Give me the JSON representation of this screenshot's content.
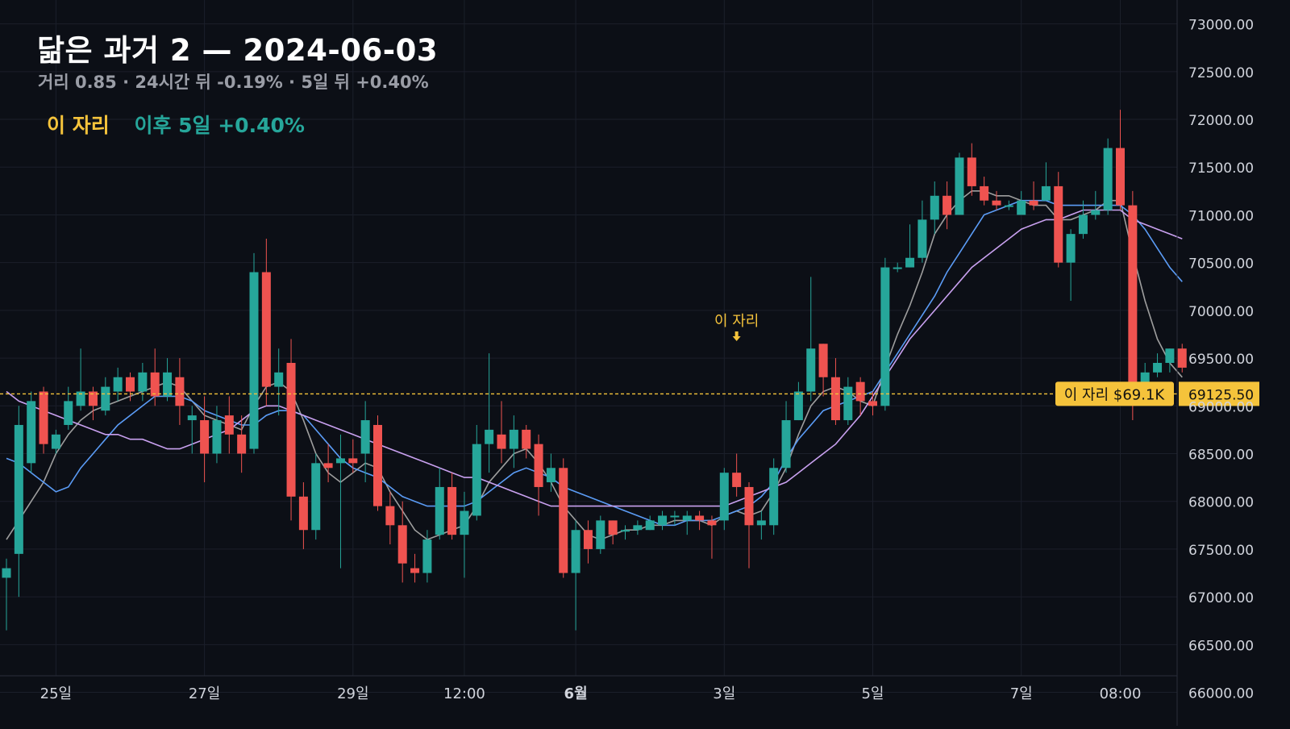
{
  "title": "닮은 과거 2 — 2024-06-03",
  "subtitle": "거리 0.85 · 24시간 뒤 -0.19% · 5일 뒤 +0.40%",
  "legend": {
    "here_label": "이 자리",
    "after_label": "이후 5일 +0.40%"
  },
  "marker": {
    "label": "이 자리",
    "price_tag": "이 자리 $69.1K",
    "price_value": "69125.50"
  },
  "colors": {
    "background": "#0c0f16",
    "grid": "#1b1f2a",
    "up": "#26a69a",
    "down": "#ef5350",
    "ma_fast": "#9e9e9e",
    "ma_mid": "#5b9cf6",
    "ma_slow": "#c9a1f0",
    "marker": "#f5c33b"
  },
  "chart_data": {
    "type": "candlestick",
    "title": "닮은 과거 2 — 2024-06-03",
    "ylim": [
      65650,
      73250
    ],
    "y_ticks": [
      "73000.00",
      "72500.00",
      "72000.00",
      "71500.00",
      "71000.00",
      "70500.00",
      "70000.00",
      "69500.00",
      "69000.00",
      "68500.00",
      "68000.00",
      "67500.00",
      "67000.00",
      "66500.00",
      "66000.00"
    ],
    "x_labels": [
      "25일",
      "27일",
      "29일",
      "12:00",
      "6월",
      "3일",
      "5일",
      "7일",
      "08:00"
    ],
    "x_label_index": [
      4,
      16,
      28,
      37,
      46,
      58,
      70,
      82,
      90
    ],
    "bold_x_label": "6월",
    "marker_index": 59,
    "marker_price": 69125.5,
    "candles": [
      [
        67200,
        67300,
        66650,
        67400
      ],
      [
        67450,
        68800,
        67000,
        69000
      ],
      [
        68400,
        69050,
        68300,
        69150
      ],
      [
        69150,
        68600,
        68500,
        69200
      ],
      [
        68550,
        68700,
        68500,
        68750
      ],
      [
        68800,
        69050,
        68750,
        69200
      ],
      [
        69000,
        69150,
        68950,
        69600
      ],
      [
        69150,
        69000,
        68850,
        69200
      ],
      [
        68950,
        69200,
        68900,
        69300
      ],
      [
        69150,
        69300,
        69050,
        69400
      ],
      [
        69300,
        69150,
        69050,
        69350
      ],
      [
        69150,
        69350,
        69050,
        69450
      ],
      [
        69350,
        69100,
        69000,
        69600
      ],
      [
        69100,
        69350,
        69050,
        69500
      ],
      [
        69300,
        69000,
        68800,
        69500
      ],
      [
        68850,
        68900,
        68500,
        69000
      ],
      [
        68850,
        68500,
        68200,
        69100
      ],
      [
        68500,
        68850,
        68400,
        69000
      ],
      [
        68900,
        68700,
        68500,
        69100
      ],
      [
        68700,
        68500,
        68300,
        68900
      ],
      [
        68550,
        70400,
        68500,
        70600
      ],
      [
        70400,
        69200,
        69000,
        70750
      ],
      [
        69200,
        69350,
        68900,
        69600
      ],
      [
        69450,
        68050,
        67800,
        69700
      ],
      [
        68050,
        67700,
        67500,
        68200
      ],
      [
        67700,
        68400,
        67600,
        68500
      ],
      [
        68400,
        68350,
        68200,
        68600
      ],
      [
        68400,
        68450,
        67300,
        68700
      ],
      [
        68450,
        68400,
        68300,
        68650
      ],
      [
        68500,
        68850,
        68200,
        69050
      ],
      [
        68800,
        67950,
        67900,
        68900
      ],
      [
        67950,
        67750,
        67550,
        68100
      ],
      [
        67750,
        67350,
        67150,
        68000
      ],
      [
        67300,
        67250,
        67150,
        67450
      ],
      [
        67250,
        67600,
        67150,
        67700
      ],
      [
        67650,
        68150,
        67600,
        68350
      ],
      [
        68150,
        67650,
        67600,
        68300
      ],
      [
        67650,
        67900,
        67200,
        68100
      ],
      [
        67850,
        68600,
        67800,
        68800
      ],
      [
        68600,
        68750,
        68300,
        69550
      ],
      [
        68700,
        68550,
        68400,
        69050
      ],
      [
        68550,
        68750,
        68350,
        68900
      ],
      [
        68750,
        68550,
        68450,
        68800
      ],
      [
        68600,
        68150,
        67850,
        68700
      ],
      [
        68200,
        68350,
        68100,
        68500
      ],
      [
        68350,
        67250,
        67200,
        68450
      ],
      [
        67250,
        67700,
        66650,
        67800
      ],
      [
        67700,
        67500,
        67350,
        67800
      ],
      [
        67500,
        67800,
        67450,
        67850
      ],
      [
        67800,
        67650,
        67550,
        67800
      ],
      [
        67700,
        67700,
        67600,
        67750
      ],
      [
        67700,
        67750,
        67650,
        67800
      ],
      [
        67700,
        67800,
        67700,
        67850
      ],
      [
        67750,
        67850,
        67700,
        67900
      ],
      [
        67850,
        67850,
        67750,
        67900
      ],
      [
        67800,
        67850,
        67650,
        67900
      ],
      [
        67850,
        67800,
        67700,
        67900
      ],
      [
        67800,
        67750,
        67400,
        67850
      ],
      [
        67800,
        68300,
        67700,
        68350
      ],
      [
        68300,
        68150,
        68050,
        68500
      ],
      [
        68150,
        67750,
        67300,
        68200
      ],
      [
        67750,
        67800,
        67600,
        67900
      ],
      [
        67750,
        68350,
        67650,
        68450
      ],
      [
        68350,
        68850,
        68300,
        69050
      ],
      [
        68850,
        69150,
        68850,
        69250
      ],
      [
        69150,
        69600,
        69050,
        70350
      ],
      [
        69650,
        69300,
        69100,
        69650
      ],
      [
        69300,
        68850,
        68800,
        69500
      ],
      [
        68850,
        69200,
        68800,
        69300
      ],
      [
        69250,
        69050,
        68900,
        69300
      ],
      [
        69050,
        69000,
        68900,
        69150
      ],
      [
        69000,
        70450,
        68950,
        70550
      ],
      [
        70450,
        70450,
        70400,
        70500
      ],
      [
        70450,
        70550,
        70450,
        70900
      ],
      [
        70550,
        70950,
        70500,
        71150
      ],
      [
        70950,
        71200,
        70800,
        71350
      ],
      [
        71200,
        71000,
        70850,
        71350
      ],
      [
        71000,
        71600,
        71000,
        71650
      ],
      [
        71600,
        71300,
        71200,
        71750
      ],
      [
        71300,
        71150,
        71100,
        71400
      ],
      [
        71150,
        71100,
        71050,
        71250
      ],
      [
        71100,
        71100,
        71050,
        71150
      ],
      [
        71000,
        71150,
        71000,
        71250
      ],
      [
        71150,
        71100,
        71050,
        71350
      ],
      [
        71150,
        71300,
        71150,
        71550
      ],
      [
        71300,
        70500,
        70450,
        71450
      ],
      [
        70500,
        70800,
        70100,
        70850
      ],
      [
        70800,
        71000,
        70750,
        71150
      ],
      [
        71000,
        71050,
        70950,
        71250
      ],
      [
        71050,
        71700,
        71000,
        71800
      ],
      [
        71700,
        71100,
        71050,
        72100
      ],
      [
        71100,
        69250,
        68850,
        71250
      ],
      [
        69250,
        69350,
        69200,
        69450
      ],
      [
        69350,
        69450,
        69300,
        69550
      ],
      [
        69450,
        69600,
        69350,
        69600
      ],
      [
        69600,
        69400,
        69350,
        69650
      ]
    ],
    "series": [
      {
        "name": "",
        "color": "#9e9e9e",
        "values": [
          67600,
          67800,
          68000,
          68200,
          68500,
          68700,
          68850,
          68950,
          69000,
          69050,
          69100,
          69150,
          69200,
          69250,
          69200,
          69050,
          68900,
          68850,
          68800,
          68750,
          69000,
          69200,
          69250,
          69150,
          68850,
          68500,
          68300,
          68200,
          68300,
          68400,
          68350,
          68100,
          67900,
          67700,
          67600,
          67650,
          67700,
          67750,
          67950,
          68200,
          68350,
          68500,
          68550,
          68400,
          68200,
          67950,
          67800,
          67650,
          67600,
          67650,
          67700,
          67700,
          67750,
          67750,
          67800,
          67800,
          67800,
          67750,
          67850,
          67900,
          67850,
          67900,
          68100,
          68350,
          68700,
          69000,
          69150,
          69200,
          69150,
          69050,
          69000,
          69400,
          69750,
          70050,
          70400,
          70800,
          71000,
          71150,
          71250,
          71250,
          71200,
          71200,
          71150,
          71100,
          71100,
          70950,
          70950,
          71000,
          71050,
          71150,
          71150,
          70600,
          70100,
          69700,
          69450,
          69300
        ]
      },
      {
        "name": "",
        "color": "#5b9cf6",
        "values": [
          68450,
          68400,
          68300,
          68200,
          68100,
          68150,
          68350,
          68500,
          68650,
          68800,
          68900,
          69000,
          69100,
          69100,
          69100,
          69050,
          68950,
          68900,
          68850,
          68800,
          68800,
          68900,
          68950,
          68950,
          68900,
          68750,
          68600,
          68450,
          68350,
          68300,
          68250,
          68150,
          68050,
          68000,
          67950,
          67950,
          67950,
          67950,
          68000,
          68100,
          68200,
          68300,
          68350,
          68300,
          68250,
          68150,
          68100,
          68050,
          68000,
          67950,
          67900,
          67850,
          67800,
          67750,
          67750,
          67800,
          67800,
          67800,
          67850,
          67900,
          67950,
          68050,
          68200,
          68450,
          68650,
          68800,
          68950,
          69000,
          69050,
          69100,
          69150,
          69350,
          69550,
          69750,
          69950,
          70150,
          70400,
          70600,
          70800,
          71000,
          71050,
          71100,
          71150,
          71150,
          71150,
          71100,
          71100,
          71100,
          71100,
          71100,
          71100,
          71000,
          70850,
          70650,
          70450,
          70300
        ]
      },
      {
        "name": "",
        "color": "#c9a1f0",
        "values": [
          69150,
          69050,
          69000,
          68950,
          68900,
          68850,
          68800,
          68750,
          68700,
          68700,
          68650,
          68650,
          68600,
          68550,
          68550,
          68600,
          68650,
          68700,
          68750,
          68850,
          68950,
          69000,
          69000,
          68950,
          68900,
          68850,
          68800,
          68750,
          68700,
          68650,
          68600,
          68550,
          68500,
          68450,
          68400,
          68350,
          68300,
          68250,
          68250,
          68200,
          68150,
          68100,
          68050,
          68000,
          67950,
          67950,
          67950,
          67950,
          67950,
          67950,
          67950,
          67950,
          67950,
          67950,
          67950,
          67950,
          67950,
          67950,
          67950,
          68000,
          68050,
          68100,
          68150,
          68200,
          68300,
          68400,
          68500,
          68600,
          68750,
          68900,
          69100,
          69300,
          69500,
          69700,
          69850,
          70000,
          70150,
          70300,
          70450,
          70550,
          70650,
          70750,
          70850,
          70900,
          70950,
          70950,
          71000,
          71050,
          71050,
          71050,
          71050,
          70950,
          70900,
          70850,
          70800,
          70750
        ]
      }
    ]
  }
}
